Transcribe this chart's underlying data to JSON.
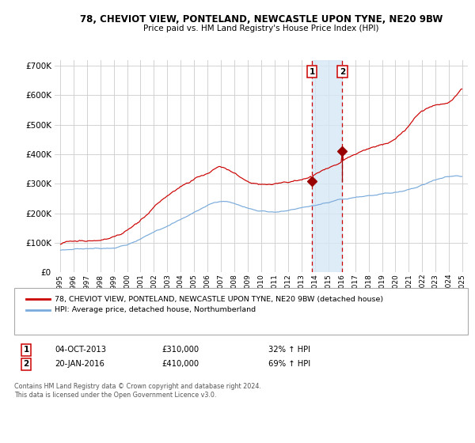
{
  "title": "78, CHEVIOT VIEW, PONTELAND, NEWCASTLE UPON TYNE, NE20 9BW",
  "subtitle": "Price paid vs. HM Land Registry's House Price Index (HPI)",
  "legend_line1": "78, CHEVIOT VIEW, PONTELAND, NEWCASTLE UPON TYNE, NE20 9BW (detached house)",
  "legend_line2": "HPI: Average price, detached house, Northumberland",
  "transaction1_date": "04-OCT-2013",
  "transaction1_price": 310000,
  "transaction1_hpi_pct": "32% ↑ HPI",
  "transaction2_date": "20-JAN-2016",
  "transaction2_price": 410000,
  "transaction2_hpi_pct": "69% ↑ HPI",
  "footnote": "Contains HM Land Registry data © Crown copyright and database right 2024.\nThis data is licensed under the Open Government Licence v3.0.",
  "hpi_color": "#7aabdc",
  "property_color": "#cc0000",
  "point_color": "#990000",
  "dashed_line_color": "#cc0000",
  "shade_color": "#d6e8f7",
  "grid_color": "#cccccc",
  "background_color": "#ffffff",
  "ylim": [
    0,
    720000
  ],
  "yticks": [
    0,
    100000,
    200000,
    300000,
    400000,
    500000,
    600000,
    700000
  ],
  "start_year": 1995,
  "end_year": 2025
}
